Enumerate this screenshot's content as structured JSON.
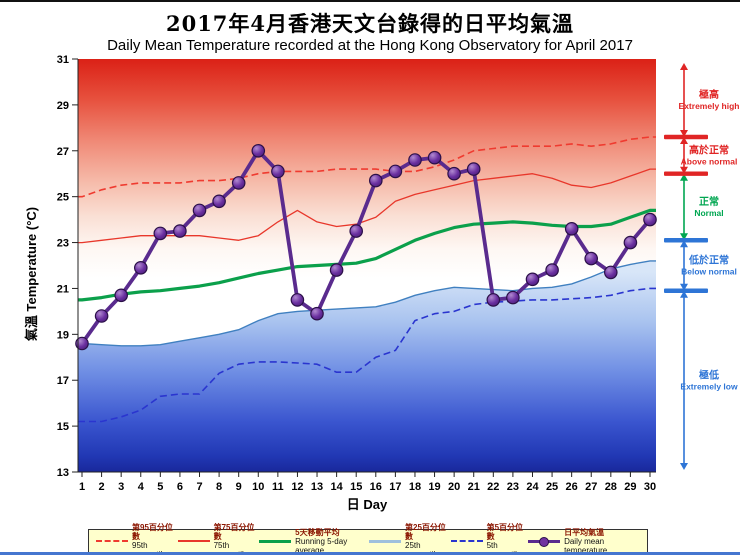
{
  "title_zh": "2017年4月香港天文台錄得的日平均氣溫",
  "title_en": "Daily Mean Temperature recorded at the Hong Kong Observatory for April 2017",
  "axes": {
    "y_axis_label": "氣溫  Temperature (°C)",
    "x_axis_label": "日 Day",
    "y_min": 13,
    "y_max": 31,
    "y_ticks": [
      13,
      15,
      17,
      19,
      21,
      23,
      25,
      27,
      29,
      31
    ],
    "x_ticks": [
      1,
      2,
      3,
      4,
      5,
      6,
      7,
      8,
      9,
      10,
      11,
      12,
      13,
      14,
      15,
      16,
      17,
      18,
      19,
      20,
      21,
      22,
      23,
      24,
      25,
      26,
      27,
      28,
      29,
      30
    ]
  },
  "right_scale": {
    "zones": [
      {
        "zh": "極高",
        "en": "Extremely high",
        "color": "#e02525",
        "t_from": 27.6,
        "t_to": 31
      },
      {
        "zh": "高於正常",
        "en": "Above normal",
        "color": "#e02525",
        "t_from": 26.0,
        "t_to": 27.6
      },
      {
        "zh": "正常",
        "en": "Normal",
        "color": "#00a651",
        "t_from": 23.1,
        "t_to": 26.0
      },
      {
        "zh": "低於正常",
        "en": "Below normal",
        "color": "#2e75d6",
        "t_from": 20.9,
        "t_to": 23.1
      },
      {
        "zh": "極低",
        "en": "Extremely low",
        "color": "#2e75d6",
        "t_from": 13,
        "t_to": 20.9
      }
    ],
    "tick_temps": [
      {
        "t": 27.6,
        "color": "#e02525"
      },
      {
        "t": 26.0,
        "color": "#e02525"
      },
      {
        "t": 23.1,
        "color": "#2e75d6"
      },
      {
        "t": 20.9,
        "color": "#2e75d6"
      }
    ]
  },
  "legend": {
    "items": [
      {
        "zh": "第95百分位數",
        "en": "95th percentile",
        "style": "red-dashed"
      },
      {
        "zh": "第75百分位數",
        "en": "75th percentile",
        "style": "red-solid"
      },
      {
        "zh": "5天移動平均",
        "en": "Running 5-day average",
        "style": "green-thick"
      },
      {
        "zh": "第25百分位數",
        "en": "25th percentile",
        "style": "lightblue-solid"
      },
      {
        "zh": "第5百分位數",
        "en": "5th percentile",
        "style": "blue-dashed"
      },
      {
        "zh": "日平均氣溫",
        "en": "Daily mean temperature",
        "style": "purple-marker"
      }
    ]
  },
  "chart_data": {
    "type": "line",
    "title": "2017年4月香港天文台錄得的日平均氣溫 / Daily Mean Temperature recorded at the Hong Kong Observatory for April 2017",
    "xlabel": "日 Day",
    "ylabel": "氣溫 Temperature (°C)",
    "xlim": [
      1,
      30
    ],
    "ylim": [
      13,
      31
    ],
    "grid": false,
    "legend_position": "bottom",
    "x": [
      1,
      2,
      3,
      4,
      5,
      6,
      7,
      8,
      9,
      10,
      11,
      12,
      13,
      14,
      15,
      16,
      17,
      18,
      19,
      20,
      21,
      22,
      23,
      24,
      25,
      26,
      27,
      28,
      29,
      30
    ],
    "series": [
      {
        "name": "95th percentile",
        "name_zh": "第95百分位數",
        "style": "dashed",
        "color": "#ef3b30",
        "width": 1.6,
        "values": [
          25.0,
          25.3,
          25.5,
          25.6,
          25.6,
          25.6,
          25.7,
          25.7,
          25.8,
          26.0,
          26.1,
          26.1,
          26.1,
          26.2,
          26.2,
          26.2,
          26.1,
          26.1,
          26.3,
          26.6,
          27.0,
          27.1,
          27.2,
          27.2,
          27.2,
          27.3,
          27.2,
          27.3,
          27.5,
          27.6
        ]
      },
      {
        "name": "75th percentile",
        "name_zh": "第75百分位數",
        "style": "solid",
        "color": "#e8372b",
        "width": 1.3,
        "values": [
          23.0,
          23.1,
          23.2,
          23.3,
          23.3,
          23.3,
          23.3,
          23.2,
          23.1,
          23.3,
          23.9,
          24.4,
          23.9,
          23.7,
          23.8,
          24.1,
          24.8,
          25.1,
          25.3,
          25.5,
          25.7,
          25.8,
          25.9,
          26.0,
          25.8,
          25.5,
          25.4,
          25.6,
          25.9,
          26.2
        ]
      },
      {
        "name": "Running 5-day average",
        "name_zh": "5天移動平均",
        "style": "solid",
        "color": "#0ba04b",
        "width": 3.2,
        "values": [
          20.5,
          20.6,
          20.75,
          20.85,
          20.9,
          21.0,
          21.1,
          21.25,
          21.45,
          21.65,
          21.8,
          21.95,
          22.0,
          22.05,
          22.1,
          22.3,
          22.7,
          23.1,
          23.4,
          23.65,
          23.8,
          23.85,
          23.9,
          23.85,
          23.75,
          23.7,
          23.7,
          23.8,
          24.1,
          24.4
        ]
      },
      {
        "name": "25th percentile",
        "name_zh": "第25百分位數",
        "style": "solid-area",
        "color": "#4080c0",
        "width": 1.4,
        "values": [
          18.6,
          18.55,
          18.5,
          18.5,
          18.55,
          18.7,
          18.85,
          19.0,
          19.2,
          19.6,
          19.9,
          20.0,
          20.05,
          20.1,
          20.15,
          20.2,
          20.4,
          20.7,
          20.9,
          21.05,
          21.0,
          20.95,
          20.9,
          21.0,
          21.05,
          21.2,
          21.5,
          21.85,
          22.05,
          22.2
        ]
      },
      {
        "name": "5th percentile",
        "name_zh": "第5百分位數",
        "style": "dashed",
        "color": "#2a35cf",
        "width": 1.6,
        "values": [
          15.2,
          15.2,
          15.4,
          15.7,
          16.3,
          16.4,
          16.4,
          17.3,
          17.7,
          17.8,
          17.8,
          17.75,
          17.7,
          17.35,
          17.35,
          18.0,
          18.3,
          19.6,
          19.9,
          20.0,
          20.3,
          20.4,
          20.45,
          20.5,
          20.5,
          20.55,
          20.6,
          20.7,
          20.9,
          21.0
        ]
      },
      {
        "name": "Daily mean temperature",
        "name_zh": "日平均氣溫",
        "style": "solid-marker",
        "color": "#5a2b8e",
        "marker_color": "#7133a0",
        "width": 3.8,
        "values": [
          18.6,
          19.8,
          20.7,
          21.9,
          23.4,
          23.5,
          24.4,
          24.8,
          25.6,
          27.0,
          26.1,
          20.5,
          19.9,
          21.8,
          23.5,
          25.7,
          26.1,
          26.6,
          26.7,
          26.0,
          26.2,
          20.5,
          20.6,
          21.4,
          21.8,
          23.6,
          22.3,
          21.7,
          23.0,
          24.0
        ]
      }
    ]
  }
}
